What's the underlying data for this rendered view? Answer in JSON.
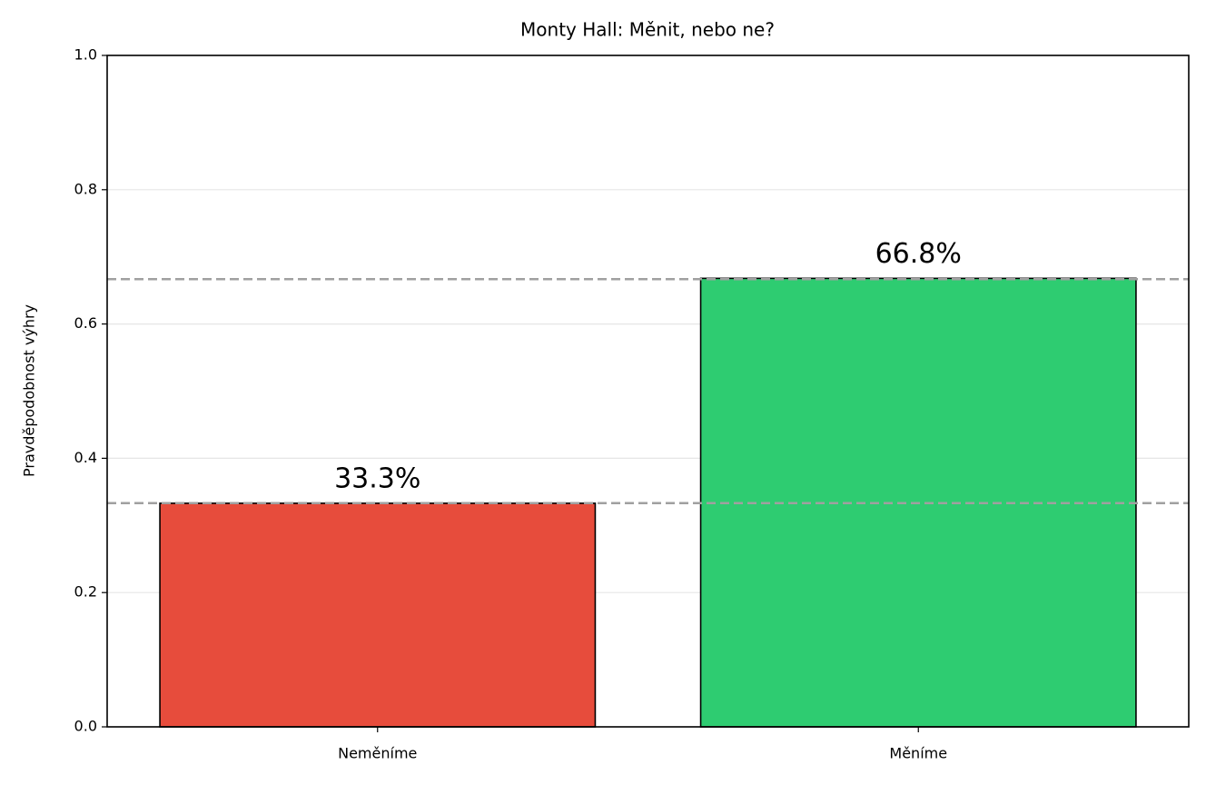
{
  "chart_data": {
    "type": "bar",
    "title": "Monty Hall: Měnit, nebo ne?",
    "ylabel": "Pravděpodobnost výhry",
    "categories": [
      "Neměníme",
      "Měníme"
    ],
    "values": [
      0.333,
      0.668
    ],
    "value_labels": [
      "33.3%",
      "66.8%"
    ],
    "colors": [
      "#e74c3c",
      "#2ecc71"
    ],
    "reference_lines": [
      0.3333,
      0.6667
    ],
    "ylim": [
      0,
      1
    ],
    "yticks": [
      {
        "value": 0,
        "label": "0.0"
      },
      0.2,
      0.4,
      0.6,
      0.8,
      {
        "value": 1,
        "label": "1.0"
      }
    ],
    "grid": true
  }
}
